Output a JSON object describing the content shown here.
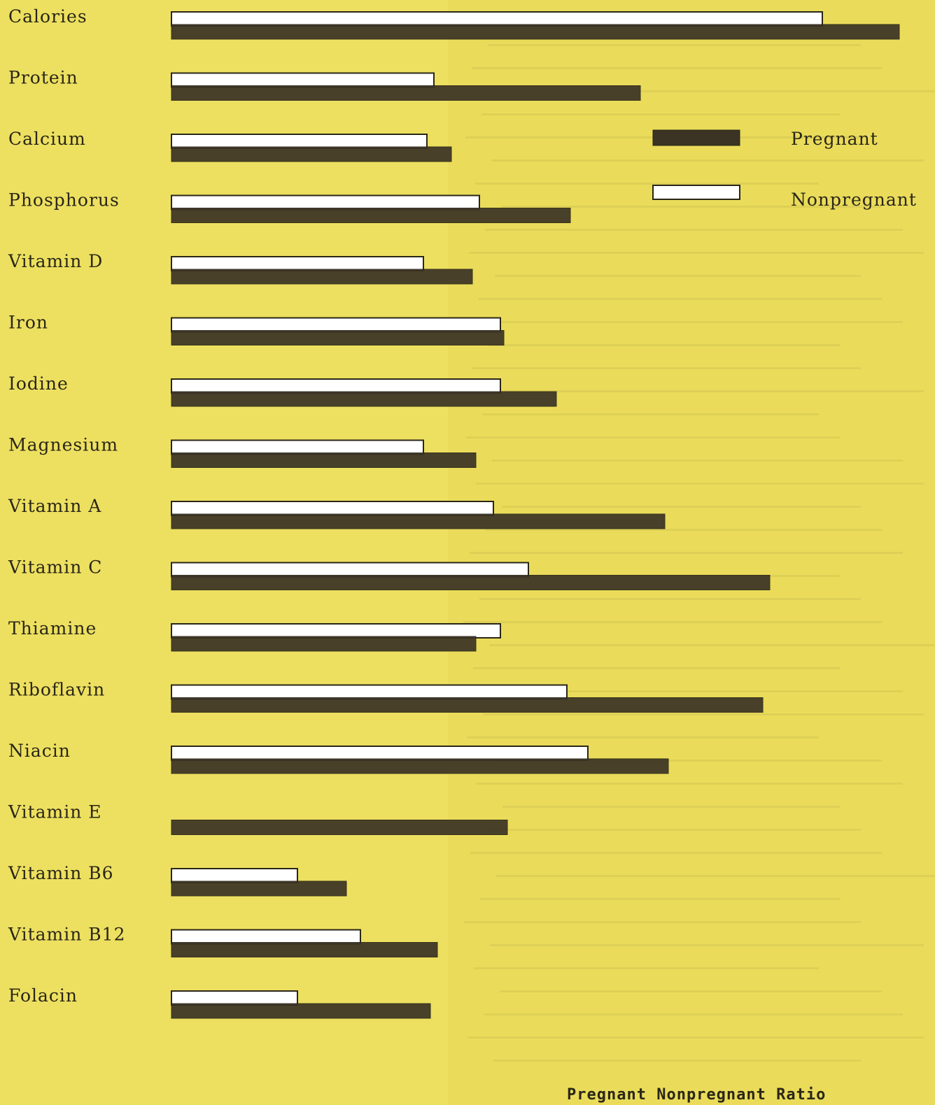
{
  "chart_data": {
    "type": "bar",
    "orientation": "horizontal",
    "categories": [
      "Calories",
      "Protein",
      "Calcium",
      "Phosphorus",
      "Vitamin D",
      "Iron",
      "Iodine",
      "Magnesium",
      "Vitamin A",
      "Vitamin C",
      "Thiamine",
      "Riboflavin",
      "Niacin",
      "Vitamin E",
      "Vitamin B6",
      "Vitamin B12",
      "Folacin"
    ],
    "series": [
      {
        "name": "Pregnant",
        "values": [
          1040,
          670,
          400,
          570,
          430,
          475,
          550,
          435,
          705,
          855,
          435,
          845,
          710,
          480,
          250,
          380,
          370
        ],
        "color": "#3b3324",
        "style": "filled"
      },
      {
        "name": "Nonpregnant",
        "values": [
          930,
          375,
          365,
          440,
          360,
          470,
          470,
          360,
          460,
          510,
          470,
          565,
          595,
          0,
          180,
          270,
          180
        ],
        "color": "#ffffff",
        "style": "outline"
      }
    ],
    "xlim": [
      0,
      1090
    ],
    "grid": false,
    "legend_position": "right",
    "title": "",
    "xlabel": "",
    "ylabel": ""
  },
  "footer": "Pregnant  Nonpregnant  Ratio"
}
